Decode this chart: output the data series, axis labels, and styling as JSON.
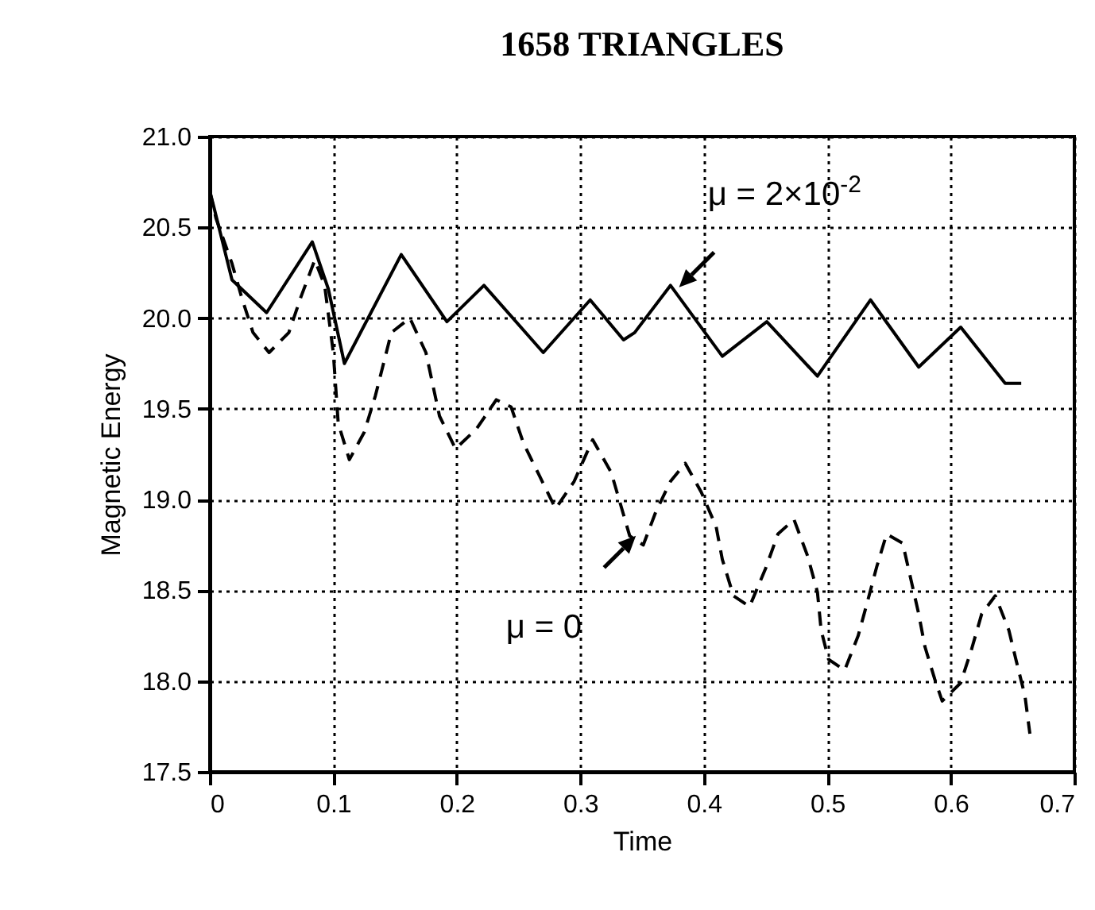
{
  "chart_data": {
    "type": "line",
    "title": "1658  TRIANGLES",
    "xlabel": "Time",
    "ylabel": "Magnetic Energy",
    "xlim": [
      0,
      0.7
    ],
    "xticks": [
      0,
      0.1,
      0.2,
      0.3,
      0.4,
      0.5,
      0.6,
      0.7
    ],
    "ylim": [
      17.5,
      21.0
    ],
    "yticks": [
      17.5,
      {
        "value": 18,
        "label": "18.0"
      },
      18.5,
      {
        "value": 19,
        "label": "19.0"
      },
      19.5,
      {
        "value": 20,
        "label": "20.0"
      },
      20.5,
      {
        "value": 21,
        "label": "21.0"
      }
    ],
    "grid": true,
    "series": [
      {
        "color": "#000000",
        "line_style": "solid",
        "x": [
          0,
          0.003,
          0.018,
          0.046,
          0.083,
          0.096,
          0.109,
          0.155,
          0.192,
          0.222,
          0.27,
          0.308,
          0.335,
          0.344,
          0.373,
          0.415,
          0.451,
          0.492,
          0.535,
          0.574,
          0.608,
          0.644,
          0.657
        ],
        "values": [
          20.7,
          20.62,
          20.21,
          20.03,
          20.42,
          20.16,
          19.75,
          20.35,
          19.98,
          20.18,
          19.81,
          20.1,
          19.88,
          19.92,
          20.18,
          19.79,
          19.98,
          19.68,
          20.1,
          19.73,
          19.95,
          19.64,
          19.64
        ]
      },
      {
        "color": "#000000",
        "line_style": "dashed",
        "x": [
          0,
          0.005,
          0.018,
          0.026,
          0.035,
          0.048,
          0.064,
          0.074,
          0.085,
          0.093,
          0.1,
          0.104,
          0.113,
          0.125,
          0.134,
          0.147,
          0.162,
          0.175,
          0.186,
          0.199,
          0.216,
          0.232,
          0.244,
          0.254,
          0.267,
          0.28,
          0.295,
          0.31,
          0.325,
          0.34,
          0.351,
          0.361,
          0.373,
          0.385,
          0.398,
          0.41,
          0.415,
          0.424,
          0.437,
          0.45,
          0.46,
          0.473,
          0.484,
          0.492,
          0.495,
          0.501,
          0.514,
          0.525,
          0.533,
          0.54,
          0.548,
          0.561,
          0.567,
          0.574,
          0.579,
          0.587,
          0.593,
          0.608,
          0.617,
          0.625,
          0.636,
          0.647,
          0.653,
          0.66,
          0.664
        ],
        "values": [
          20.7,
          20.55,
          20.3,
          20.11,
          19.92,
          19.81,
          19.92,
          20.12,
          20.32,
          20.18,
          19.81,
          19.42,
          19.22,
          19.37,
          19.57,
          19.92,
          20.0,
          19.81,
          19.46,
          19.28,
          19.39,
          19.55,
          19.51,
          19.31,
          19.13,
          18.95,
          19.1,
          19.33,
          19.15,
          18.8,
          18.75,
          18.93,
          19.1,
          19.2,
          19.04,
          18.85,
          18.67,
          18.47,
          18.41,
          18.62,
          18.81,
          18.89,
          18.69,
          18.49,
          18.28,
          18.12,
          18.06,
          18.25,
          18.45,
          18.63,
          18.81,
          18.76,
          18.58,
          18.37,
          18.19,
          18.01,
          17.89,
          17.99,
          18.18,
          18.37,
          18.47,
          18.28,
          18.11,
          17.92,
          17.71
        ]
      }
    ],
    "annotations": [
      {
        "text": "μ = 2×10$^{-2}$",
        "x": 0.38,
        "y": 20.17
      },
      {
        "text": "μ = 0",
        "x": 0.345,
        "y": 18.8
      }
    ]
  }
}
